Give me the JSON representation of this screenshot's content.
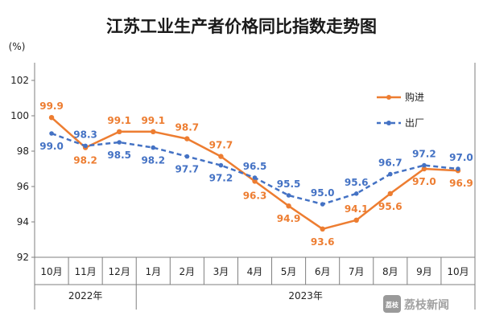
{
  "chart_data": {
    "type": "line",
    "title": "江苏工业生产者价格同比指数走势图",
    "y_unit_label": "(%)",
    "ylim": [
      92,
      103
    ],
    "y_ticks": [
      92,
      94,
      96,
      98,
      100,
      102
    ],
    "categories": [
      "10月",
      "11月",
      "12月",
      "1月",
      "2月",
      "3月",
      "4月",
      "5月",
      "6月",
      "7月",
      "8月",
      "9月",
      "10月"
    ],
    "year_groups": [
      {
        "label": "2022年",
        "start": 0,
        "end": 2
      },
      {
        "label": "2023年",
        "start": 3,
        "end": 12
      }
    ],
    "series": [
      {
        "name": "购进",
        "color": "#ED7D31",
        "style": "solid",
        "values": [
          99.9,
          98.2,
          99.1,
          99.1,
          98.7,
          97.7,
          96.3,
          94.9,
          93.6,
          94.1,
          95.6,
          97.0,
          96.9
        ],
        "labels": [
          "99.9",
          "98.2",
          "99.1",
          "99.1",
          "98.7",
          "97.7",
          "96.3",
          "94.9",
          "93.6",
          "94.1",
          "95.6",
          "97.0",
          "96.9"
        ]
      },
      {
        "name": "出厂",
        "color": "#4472C4",
        "style": "dashed",
        "values": [
          99.0,
          98.3,
          98.5,
          98.2,
          97.7,
          97.2,
          96.5,
          95.5,
          95.0,
          95.6,
          96.7,
          97.2,
          97.0
        ],
        "labels": [
          "99.0",
          "98.3",
          "98.5",
          "98.2",
          "97.7",
          "97.2",
          "96.5",
          "95.5",
          "95.0",
          "95.6",
          "96.7",
          "97.2",
          "97.0"
        ]
      }
    ],
    "legend_position": "top-right",
    "grid": false
  },
  "watermark": {
    "badge": "荔枝",
    "text": "荔枝新闻"
  }
}
